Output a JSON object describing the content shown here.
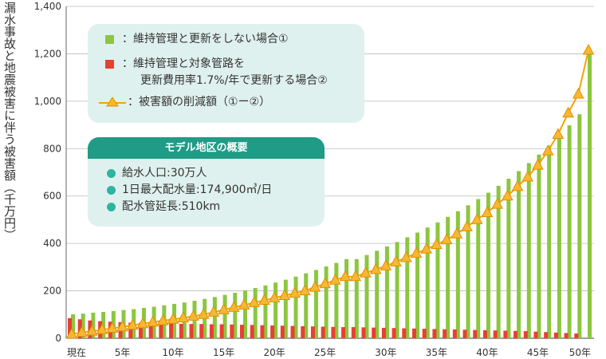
{
  "chart_data": {
    "type": "bar",
    "ylabel": "漏水事故と地震被害に伴う被害額（千万円）",
    "ylim": [
      0,
      1400
    ],
    "yticks": [
      "0",
      "200",
      "400",
      "600",
      "800",
      "1,000",
      "1,200",
      "1,400"
    ],
    "x": [
      0,
      1,
      2,
      3,
      4,
      5,
      6,
      7,
      8,
      9,
      10,
      11,
      12,
      13,
      14,
      15,
      16,
      17,
      18,
      19,
      20,
      21,
      22,
      23,
      24,
      25,
      26,
      27,
      27,
      28,
      29,
      30,
      31,
      32,
      33,
      34,
      35,
      36,
      37,
      38,
      39,
      40,
      41,
      42,
      43,
      44,
      45,
      46,
      47,
      48,
      49,
      50
    ],
    "xtick_labels": [
      "現在",
      "5年",
      "10年",
      "15年",
      "20年",
      "25年",
      "30年",
      "35年",
      "40年",
      "45年",
      "50年"
    ],
    "series": [
      {
        "name": "：維持管理と更新をしない場合①",
        "color": "#8cc63f",
        "values": [
          101,
          104,
          108,
          111,
          115,
          119,
          123,
          128,
          133,
          139,
          145,
          151,
          158,
          166,
          174,
          183,
          192,
          202,
          212,
          223,
          235,
          247,
          260,
          274,
          288,
          303,
          318,
          334,
          334,
          351,
          369,
          387,
          406,
          426,
          446,
          467,
          489,
          512,
          536,
          561,
          587,
          614,
          643,
          673,
          705,
          739,
          775,
          813,
          854,
          898,
          945,
          1215
        ]
      },
      {
        "name": "：維持管理と対象管路を",
        "color": "#e8402f",
        "values": [
          85,
          80,
          75,
          72,
          70,
          68,
          66,
          65,
          64,
          63,
          62,
          61,
          60,
          60,
          59,
          59,
          58,
          57,
          56,
          55,
          54,
          53,
          52,
          51,
          50,
          49,
          48,
          47,
          47,
          46,
          45,
          44,
          43,
          42,
          41,
          40,
          39,
          38,
          37,
          36,
          35,
          34,
          33,
          32,
          31,
          30,
          28,
          26,
          24,
          22,
          20,
          0
        ]
      },
      {
        "name": "：被害額の削減額（①ー②）",
        "color": "#f5a300",
        "values": [
          17,
          25,
          30,
          36,
          42,
          48,
          55,
          61,
          68,
          74,
          80,
          86,
          93,
          100,
          110,
          120,
          130,
          140,
          150,
          160,
          170,
          180,
          190,
          200,
          215,
          230,
          245,
          260,
          260,
          275,
          290,
          305,
          322,
          340,
          358,
          376,
          395,
          415,
          440,
          470,
          500,
          530,
          565,
          600,
          640,
          680,
          730,
          790,
          860,
          950,
          1030,
          1215
        ]
      }
    ],
    "legend2_line2": "更新費用率1.7%/年で更新する場合②"
  },
  "model": {
    "title": "モデル地区の概要",
    "items": [
      "給水人口:30万人",
      "1日最大配水量:174,900㎥/日",
      "配水管延長:510km"
    ]
  },
  "colors": {
    "green": "#8cc63f",
    "red": "#e8402f",
    "orange": "#f5a300",
    "teal": "#1f9b86",
    "panel": "#dff1ee"
  }
}
